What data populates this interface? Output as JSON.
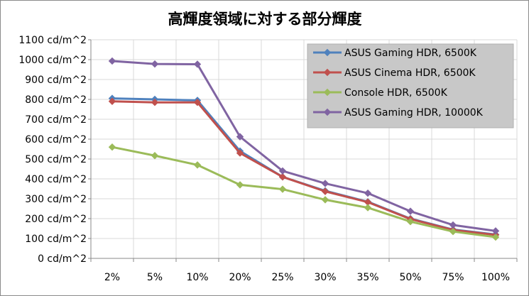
{
  "chart_data": {
    "type": "line",
    "title": "高輝度領域に対する部分輝度",
    "categories": [
      "2%",
      "5%",
      "10%",
      "20%",
      "25%",
      "30%",
      "35%",
      "50%",
      "75%",
      "100%"
    ],
    "ylim": [
      0,
      1100
    ],
    "yticks": [
      0,
      100,
      200,
      300,
      400,
      500,
      600,
      700,
      800,
      900,
      1000,
      1100
    ],
    "ytick_labels": [
      "0 cd/m^2",
      "100 cd/m^2",
      "200 cd/m^2",
      "300 cd/m^2",
      "400 cd/m^2",
      "500 cd/m^2",
      "600 cd/m^2",
      "700 cd/m^2",
      "800 cd/m^2",
      "900 cd/m^2",
      "1000 cd/m^2",
      "1100 cd/m^2"
    ],
    "grid": true,
    "legend_position": "top-right",
    "series": [
      {
        "name": "ASUS Gaming HDR, 6500K",
        "color": "#4f81bd",
        "values": [
          805,
          800,
          795,
          540,
          410,
          340,
          285,
          200,
          145,
          120
        ]
      },
      {
        "name": "ASUS Cinema HDR, 6500K",
        "color": "#c0504d",
        "values": [
          790,
          785,
          785,
          530,
          410,
          337,
          283,
          198,
          143,
          118
        ]
      },
      {
        "name": "Console HDR, 6500K",
        "color": "#9bbb59",
        "values": [
          560,
          517,
          470,
          370,
          348,
          295,
          255,
          185,
          135,
          107
        ]
      },
      {
        "name": "ASUS Gaming HDR, 10000K",
        "color": "#8064a2",
        "values": [
          993,
          978,
          977,
          612,
          440,
          377,
          328,
          237,
          168,
          138
        ]
      }
    ]
  }
}
